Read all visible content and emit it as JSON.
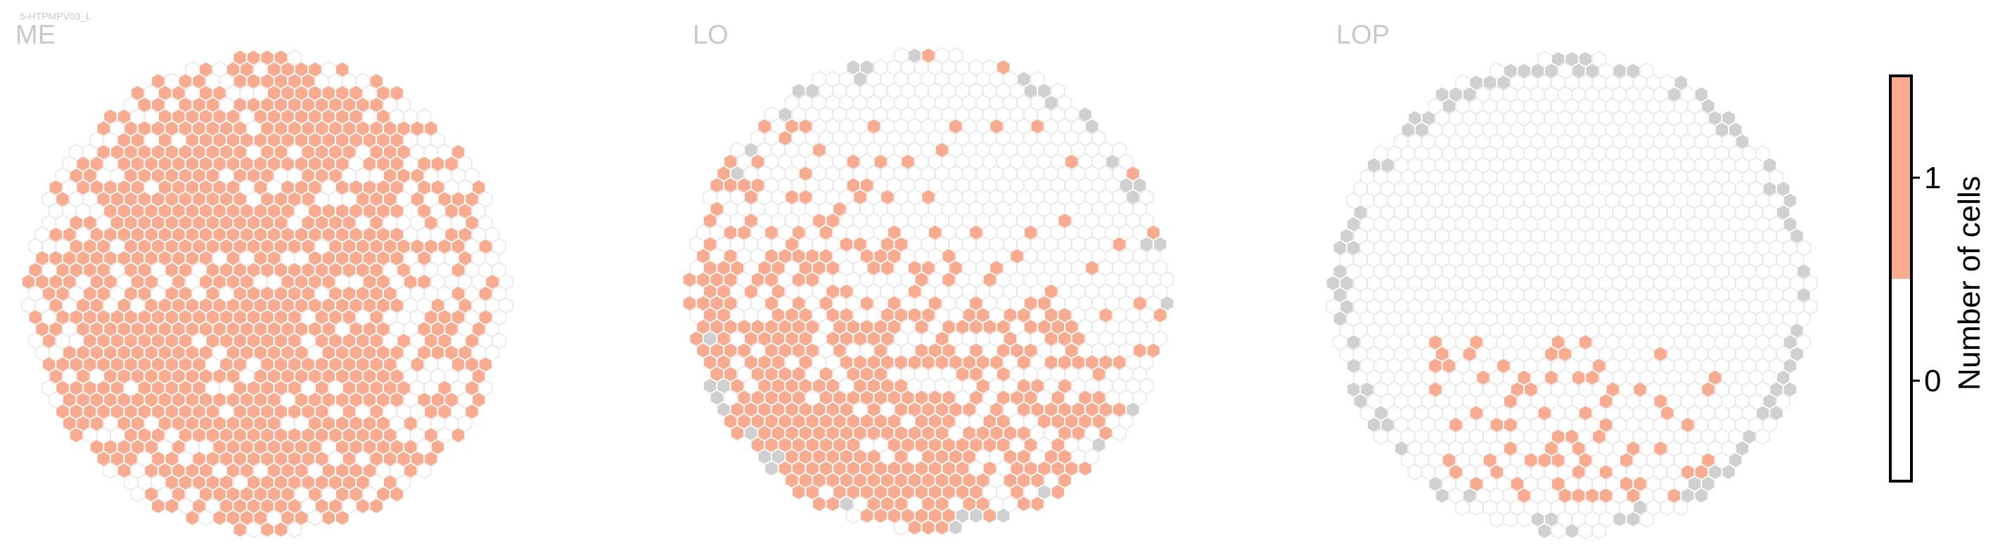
{
  "title": "5-HTPMPV03_L",
  "colors": {
    "count_1": "#f9ab90",
    "count_0": "#ffffff",
    "outline": "#e8e8e8",
    "missing": "#d0d0d0",
    "label": "#c8c8c8"
  },
  "chart_data": {
    "type": "heatmap",
    "title": "5-HTPMPV03_L",
    "panels": [
      {
        "name": "ME",
        "fraction_filled": 0.78,
        "fraction_missing": 0.0,
        "missing_position": "none",
        "filled_region": "most of the disc"
      },
      {
        "name": "LO",
        "fraction_filled": 0.55,
        "fraction_missing": 0.035,
        "missing_position": "rim",
        "filled_region": "left and lower area"
      },
      {
        "name": "LOP",
        "fraction_filled": 0.085,
        "fraction_missing": 0.09,
        "missing_position": "rim",
        "filled_region": "lower center"
      }
    ],
    "colorbar": {
      "label": "Number of cells",
      "ticks": [
        0,
        1
      ],
      "range": [
        -0.5,
        1.5
      ],
      "bins": [
        {
          "value": 0,
          "color": "#ffffff"
        },
        {
          "value": 1,
          "color": "#f9ab90"
        }
      ]
    },
    "grid": false
  }
}
